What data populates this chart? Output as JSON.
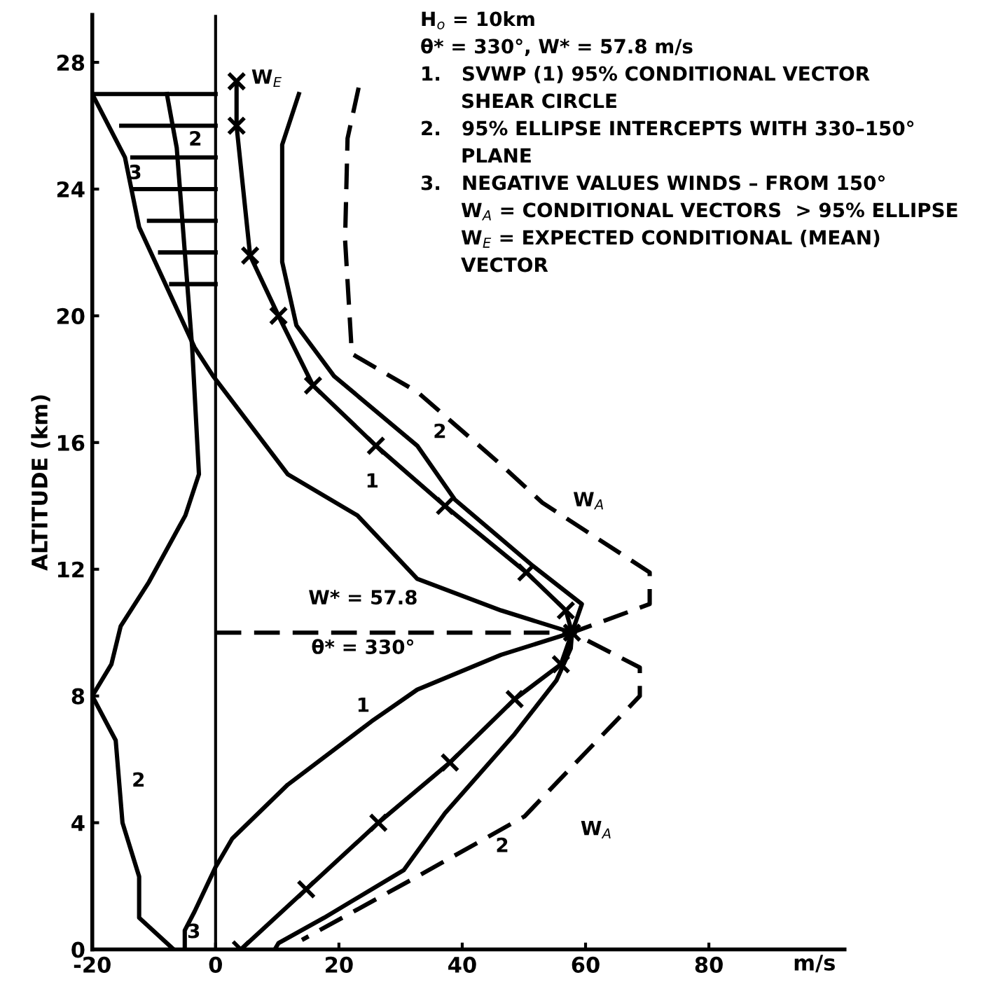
{
  "chart_data": {
    "type": "line",
    "xlabel": "m/s",
    "ylabel": "ALTITUDE (km)",
    "xlim": [
      -20,
      102
    ],
    "ylim": [
      0,
      29.5
    ],
    "xticks": [
      -20,
      0,
      20,
      40,
      60,
      80
    ],
    "yticks": [
      0,
      4,
      8,
      12,
      16,
      20,
      24,
      28
    ],
    "grid": false,
    "legend": false,
    "ref_lines": [
      {
        "axis": "x",
        "value": 0,
        "color": "#000000",
        "line_style": "solid"
      }
    ],
    "series": [
      {
        "type": "line",
        "color": "#000000",
        "line_style": "solid",
        "marker": "none",
        "x": [
          57.8,
          46.3,
          32.7,
          23,
          11.7,
          -0.4,
          -3.4,
          -12.4,
          -14.7,
          -20
        ],
        "values": [
          10,
          10.7,
          11.7,
          13.7,
          15.0,
          18.1,
          19.0,
          22.8,
          25.0,
          27.0
        ]
      },
      {
        "type": "line",
        "color": "#000000",
        "line_style": "solid",
        "marker": "none",
        "x": [
          57.8,
          46.3,
          32.7,
          25.3,
          11.7,
          2.7,
          0,
          -3.4,
          -5,
          -5
        ],
        "values": [
          10,
          9.3,
          8.2,
          7.2,
          5.2,
          3.5,
          2.6,
          1.2,
          0.6,
          0
        ]
      },
      {
        "type": "line",
        "color": "#000000",
        "line_style": "solid",
        "marker": "cross",
        "x": [
          3.4,
          3.4,
          5.6,
          10.2,
          15.8,
          26,
          37.2,
          50.4,
          56.8,
          57.8,
          56,
          48.5,
          38,
          26.4,
          14.7,
          4.1
        ],
        "values": [
          27.4,
          26.0,
          21.9,
          20.0,
          17.8,
          15.9,
          14.0,
          11.9,
          10.7,
          10,
          9.0,
          7.9,
          5.9,
          4.0,
          1.9,
          0
        ]
      },
      {
        "type": "line",
        "color": "#000000",
        "line_style": "solid",
        "marker": "none",
        "x": [
          13.5,
          10.8,
          10.8,
          13.1,
          19.2,
          32.7,
          38.8,
          51.5,
          59.4,
          57.8,
          57.6,
          55.3,
          48.5,
          37.2,
          30.5,
          17.6,
          10.2,
          9.6
        ],
        "values": [
          27.0,
          25.4,
          21.7,
          19.7,
          18.1,
          15.9,
          14.2,
          12.1,
          10.9,
          10,
          9.5,
          8.5,
          6.8,
          4.3,
          2.5,
          1.0,
          0.2,
          0
        ]
      },
      {
        "type": "line",
        "color": "#000000",
        "line_style": "solid",
        "marker": "none",
        "x": [
          -7.9,
          -6.3,
          -3.8,
          -2.7,
          -4.9,
          -10.8,
          -15.4,
          -16.9,
          -20,
          -16.2,
          -15.1,
          -12.4,
          -12.4,
          -6.8
        ],
        "values": [
          27.0,
          25.3,
          19.0,
          15.0,
          13.7,
          11.6,
          10.2,
          9.0,
          8,
          6.6,
          4.0,
          2.3,
          1.0,
          0
        ]
      },
      {
        "type": "line",
        "color": "#000000",
        "line_style": "dashed",
        "marker": "none",
        "x": [
          23.2,
          21.4,
          21,
          22.1,
          32.7,
          46.3,
          53,
          70.4,
          70.4,
          57.8,
          68.8,
          68.8,
          50.1,
          32.7,
          14
        ],
        "values": [
          27.2,
          25.6,
          22.4,
          18.8,
          17.6,
          15.3,
          14.1,
          11.9,
          10.9,
          10,
          8.9,
          8.0,
          4.2,
          2.3,
          0.3
        ]
      },
      {
        "type": "line",
        "color": "#000000",
        "line_style": "dashed",
        "marker": "none",
        "x": [
          0,
          57.8
        ],
        "values": [
          10,
          10
        ]
      },
      {
        "type": "line",
        "color": "#000000",
        "line_style": "solid",
        "marker": "none",
        "x": [
          -20,
          0,
          null,
          -15.3,
          0,
          null,
          -13.5,
          0,
          null,
          -13.1,
          0,
          null,
          -10.8,
          0,
          null,
          -9,
          0,
          null,
          -7.2,
          0
        ],
        "values": [
          27,
          27,
          null,
          26,
          26,
          null,
          25,
          25,
          null,
          24,
          24,
          null,
          23,
          23,
          null,
          22,
          22,
          null,
          21,
          21
        ]
      }
    ],
    "annotations": [
      "H$_{o}$ = 10km",
      "θ* = 330°, W* = 57.8 m/s",
      "1.   SVWP (1) 95% CONDITIONAL VECTOR",
      "      SHEAR CIRCLE",
      "2.   95% ELLIPSE INTERCEPTS WITH 330–150°",
      "      PLANE",
      "3.   NEGATIVE VALUES WINDS – FROM 150°",
      "      W$_{A}$ = CONDITIONAL VECTORS  > 95% ELLIPSE",
      "      W$_{E}$ = EXPECTED CONDITIONAL (MEAN)",
      "      VECTOR",
      "W* = 57.8",
      "θ* = 330°",
      "W$_{E}$",
      "W$_{A}$",
      "W$_{A}$",
      "1",
      "1",
      "2",
      "2",
      "2",
      "2",
      "3",
      "3"
    ]
  }
}
